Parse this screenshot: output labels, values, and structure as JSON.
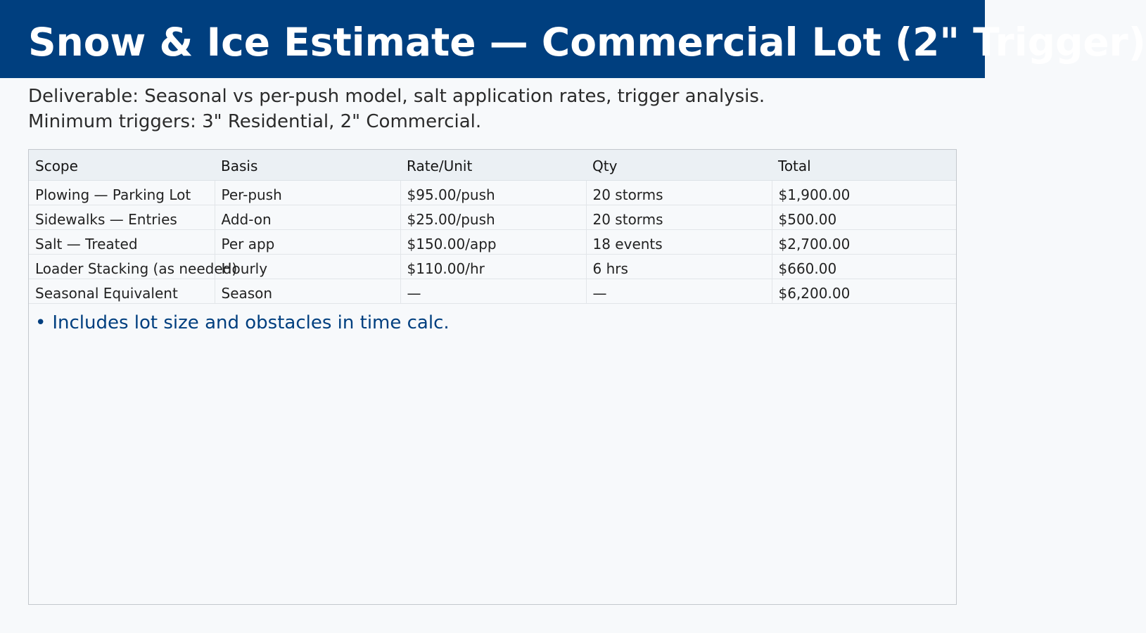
{
  "header": {
    "title": "Snow & Ice Estimate — Commercial Lot (2\" Trigger)"
  },
  "subtitle": {
    "line1": "Deliverable: Seasonal vs per-push model, salt application rates, trigger analysis.",
    "line2": "Minimum triggers: 3\" Residential, 2\" Commercial."
  },
  "table": {
    "columns": [
      "Scope",
      "Basis",
      "Rate/Unit",
      "Qty",
      "Total"
    ],
    "rows": [
      [
        "Plowing — Parking Lot",
        "Per-push",
        "$95.00/push",
        "20 storms",
        "$1,900.00"
      ],
      [
        "Sidewalks — Entries",
        "Add-on",
        "$25.00/push",
        "20 storms",
        "$500.00"
      ],
      [
        "Salt — Treated",
        "Per app",
        "$150.00/app",
        "18 events",
        "$2,700.00"
      ],
      [
        "Loader Stacking (as needed)",
        "Hourly",
        "$110.00/hr",
        "6 hrs",
        "$660.00"
      ],
      [
        "Seasonal Equivalent",
        "Season",
        "—",
        "—",
        "$6,200.00"
      ]
    ]
  },
  "notes": {
    "bullet": "•",
    "items": [
      "Includes lot size and obstacles in time calc."
    ]
  },
  "colors": {
    "header_bg": "#003f7f",
    "note_text": "#003f7f",
    "page_bg": "#f7f9fb"
  }
}
